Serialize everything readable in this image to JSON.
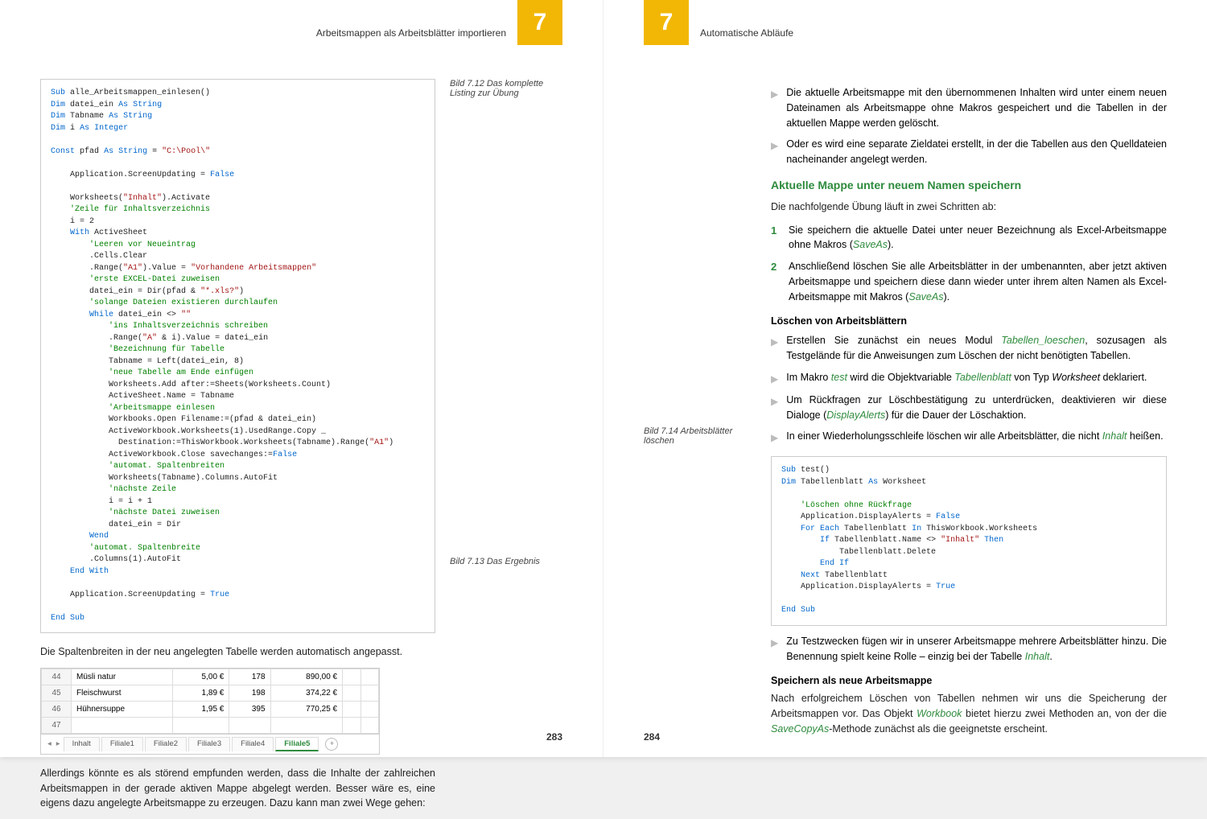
{
  "left": {
    "headerTitle": "Arbeitsmappen als Arbeitsblätter importieren",
    "chapter": "7",
    "caption712": "Bild 7.12 Das komplette Listing zur Übung",
    "caption713": "Bild 7.13 Das Ergebnis",
    "para1": "Die Spaltenbreiten in der neu angelegten Tabelle werden automatisch angepasst.",
    "para2": "Allerdings könnte es als störend empfunden werden, dass die Inhalte der zahlreichen Arbeitsmappen in der gerade aktiven Mappe abgelegt werden. Besser wäre es, eine eigens dazu angelegte Arbeitsmappe zu erzeugen. Dazu kann man zwei Wege gehen:",
    "excelRows": [
      {
        "n": "44",
        "name": "Müsli natur",
        "p": "5,00 €",
        "q": "178",
        "t": "890,00 €"
      },
      {
        "n": "45",
        "name": "Fleischwurst",
        "p": "1,89 €",
        "q": "198",
        "t": "374,22 €"
      },
      {
        "n": "46",
        "name": "Hühnersuppe",
        "p": "1,95 €",
        "q": "395",
        "t": "770,25 €"
      },
      {
        "n": "47",
        "name": "",
        "p": "",
        "q": "",
        "t": ""
      }
    ],
    "tabs": [
      "Inhalt",
      "Filiale1",
      "Filiale2",
      "Filiale3",
      "Filiale4",
      "Filiale5"
    ],
    "activeTab": "Filiale5",
    "pageNum": "283"
  },
  "right": {
    "headerTitle": "Automatische Abläufe",
    "chapter": "7",
    "bulletsTop": [
      "Die aktuelle Arbeitsmappe mit den übernommenen Inhalten wird unter einem neuen Dateinamen als Arbeitsmappe ohne Makros gespeichert und die Tabellen in der aktuellen Mappe werden gelöscht.",
      "Oder es wird eine separate Zieldatei erstellt, in der die Tabellen aus den Quelldateien nacheinander angelegt werden."
    ],
    "sectionHead": "Aktuelle Mappe unter neuem Namen speichern",
    "introPara": "Die nachfolgende Übung läuft in zwei Schritten ab:",
    "steps": [
      {
        "pre": "Sie speichern die aktuelle Datei unter neuer Bezeichnung als Excel-Arbeitsmappe ohne Makros (",
        "term": "SaveAs",
        "post": ")."
      },
      {
        "pre": "Anschließend löschen Sie alle Arbeitsblätter in der umbenannten, aber jetzt aktiven Arbeitsmappe und speichern diese dann wieder unter ihrem alten Namen als Excel-Arbeitsmappe mit Makros (",
        "term": "SaveAs",
        "post": ")."
      }
    ],
    "subHead1": "Löschen von Arbeitsblättern",
    "loeschenBullets": [
      {
        "pre": "Erstellen Sie zunächst ein neues Modul ",
        "t1": "Tabellen_loeschen",
        "mid": ", sozusagen als Testgelände für die Anweisungen zum Löschen der nicht benötigten Tabellen.",
        "t2": "",
        "post": ""
      },
      {
        "pre": "Im Makro ",
        "t1": "test",
        "mid": " wird die Objektvariable ",
        "t2": "Tabellenblatt",
        "post": " von Typ <i>Worksheet</i> deklariert."
      },
      {
        "pre": "Um Rückfragen zur Löschbestätigung zu unterdrücken, deaktivieren wir diese Dialoge (",
        "t1": "DisplayAlerts",
        "mid": ") für die Dauer der Löschaktion.",
        "t2": "",
        "post": ""
      },
      {
        "pre": "In einer Wiederholungsschleife löschen wir alle Arbeitsblätter, die nicht ",
        "t1": "Inhalt",
        "mid": " heißen.",
        "t2": "",
        "post": ""
      }
    ],
    "caption714": "Bild 7.14 Arbeitsblätter löschen",
    "bulletsAfterCode": [
      {
        "pre": "Zu Testzwecken fügen wir in unserer Arbeitsmappe mehrere Arbeitsblätter hinzu. Die Benennung spielt keine Rolle – einzig bei der Tabelle ",
        "t1": "Inhalt",
        "post": "."
      }
    ],
    "subHead2": "Speichern als neue Arbeitsmappe",
    "lastParaPre": "Nach erfolgreichem Löschen von Tabellen nehmen wir uns die Speicherung der Arbeitsmappen vor. Das Objekt ",
    "lastParaT1": "Workbook",
    "lastParaMid": " bietet hierzu zwei Methoden an, von der die ",
    "lastParaT2": "SaveCopyAs",
    "lastParaPost": "-Methode zunächst als die geeignetste erscheint.",
    "pageNum": "284"
  }
}
